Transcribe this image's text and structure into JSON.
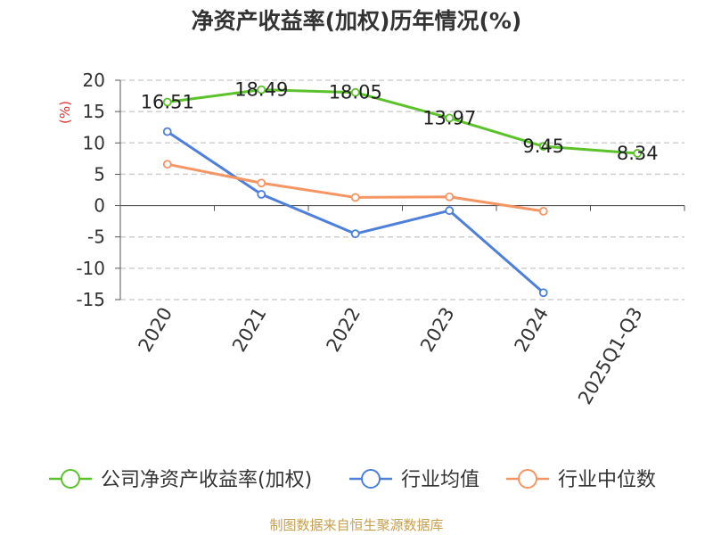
{
  "chart_data": {
    "type": "line",
    "title": "净资产收益率(加权)历年情况(%)",
    "ylabel": "(%)",
    "xlabel": "",
    "categories": [
      "2020",
      "2021",
      "2022",
      "2023",
      "2024",
      "2025Q1-Q3"
    ],
    "ylim": [
      -15,
      20
    ],
    "yticks": [
      20,
      15,
      10,
      5,
      0,
      -5,
      -10,
      -15
    ],
    "grid": true,
    "legend_position": "bottom",
    "series": [
      {
        "name": "公司净资产收益率(加权)",
        "color": "#5cc22b",
        "values": [
          16.51,
          18.49,
          18.05,
          13.97,
          9.45,
          8.34
        ],
        "labels": [
          "16.51",
          "18.49",
          "18.05",
          "13.97",
          "9.45",
          "8.34"
        ]
      },
      {
        "name": "行业均值",
        "color": "#4e7fd9",
        "values": [
          11.8,
          1.8,
          -4.5,
          -0.8,
          -13.9,
          null
        ]
      },
      {
        "name": "行业中位数",
        "color": "#f59563",
        "values": [
          6.6,
          3.6,
          1.3,
          1.4,
          -0.9,
          null
        ]
      }
    ]
  },
  "source": "制图数据来自恒生聚源数据库"
}
